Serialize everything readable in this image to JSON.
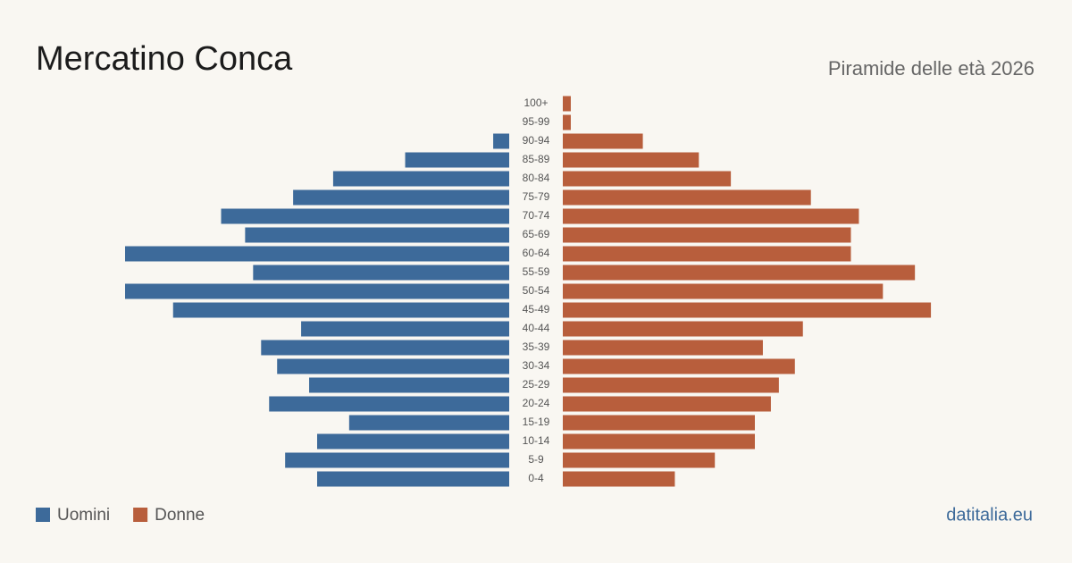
{
  "chart_data": {
    "type": "pyramid",
    "title": "Mercatino Conca",
    "subtitle": "Piramide delle età 2026",
    "source": "datitalia.eu",
    "categories": [
      "0-4",
      "5-9",
      "10-14",
      "15-19",
      "20-24",
      "25-29",
      "30-34",
      "35-39",
      "40-44",
      "45-49",
      "50-54",
      "55-59",
      "60-64",
      "65-69",
      "70-74",
      "75-79",
      "80-84",
      "85-89",
      "90-94",
      "95-99",
      "100+"
    ],
    "series": [
      {
        "name": "Uomini",
        "color": "#3d6a9a",
        "values": [
          24,
          28,
          24,
          20,
          30,
          25,
          29,
          31,
          26,
          42,
          48,
          32,
          48,
          33,
          36,
          27,
          22,
          13,
          2,
          0,
          0
        ]
      },
      {
        "name": "Donne",
        "color": "#b85e3c",
        "values": [
          14,
          19,
          24,
          24,
          26,
          27,
          29,
          25,
          30,
          46,
          40,
          44,
          36,
          36,
          37,
          31,
          21,
          17,
          10,
          1,
          1
        ]
      }
    ]
  }
}
